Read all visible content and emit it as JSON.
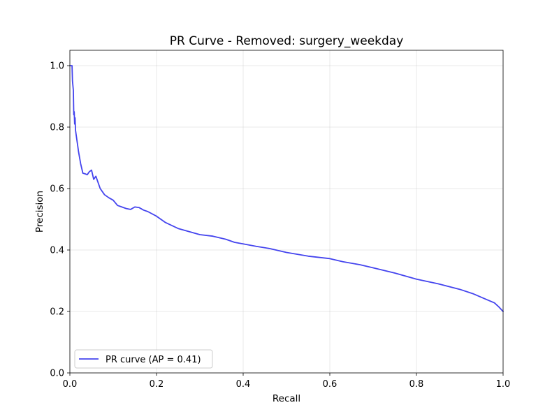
{
  "chart_data": {
    "type": "line",
    "title": "PR Curve - Removed: surgery_weekday",
    "xlabel": "Recall",
    "ylabel": "Precision",
    "xlim": [
      0.0,
      1.0
    ],
    "ylim": [
      0.0,
      1.05
    ],
    "xticks": [
      "0.0",
      "0.2",
      "0.4",
      "0.6",
      "0.8",
      "1.0"
    ],
    "yticks": [
      "0.0",
      "0.2",
      "0.4",
      "0.6",
      "0.8",
      "1.0"
    ],
    "grid": true,
    "legend_position": "lower-left",
    "series": [
      {
        "name": "PR curve (AP = 0.41)",
        "color": "#4444ee",
        "x": [
          0.0,
          0.005,
          0.006,
          0.008,
          0.009,
          0.01,
          0.011,
          0.012,
          0.013,
          0.015,
          0.018,
          0.02,
          0.025,
          0.03,
          0.035,
          0.04,
          0.045,
          0.05,
          0.055,
          0.06,
          0.065,
          0.07,
          0.08,
          0.09,
          0.1,
          0.11,
          0.12,
          0.13,
          0.14,
          0.15,
          0.16,
          0.17,
          0.18,
          0.2,
          0.22,
          0.25,
          0.28,
          0.3,
          0.33,
          0.36,
          0.38,
          0.4,
          0.43,
          0.46,
          0.5,
          0.55,
          0.6,
          0.63,
          0.67,
          0.7,
          0.75,
          0.8,
          0.85,
          0.9,
          0.93,
          0.96,
          0.98,
          0.99,
          1.0
        ],
        "y": [
          1.0,
          1.0,
          0.95,
          0.92,
          0.84,
          0.85,
          0.81,
          0.83,
          0.79,
          0.77,
          0.74,
          0.72,
          0.68,
          0.65,
          0.648,
          0.645,
          0.655,
          0.66,
          0.63,
          0.64,
          0.62,
          0.6,
          0.58,
          0.57,
          0.562,
          0.545,
          0.54,
          0.535,
          0.532,
          0.54,
          0.538,
          0.53,
          0.525,
          0.51,
          0.49,
          0.47,
          0.458,
          0.45,
          0.445,
          0.435,
          0.425,
          0.42,
          0.412,
          0.405,
          0.392,
          0.38,
          0.372,
          0.362,
          0.352,
          0.342,
          0.325,
          0.305,
          0.29,
          0.272,
          0.258,
          0.24,
          0.228,
          0.215,
          0.2
        ]
      }
    ]
  }
}
